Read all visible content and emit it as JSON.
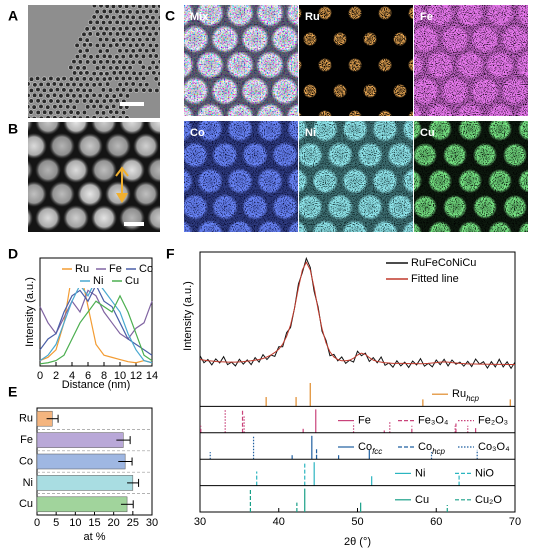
{
  "panel_labels": [
    "A",
    "B",
    "C",
    "D",
    "E",
    "F"
  ],
  "map_labels": [
    "Mix",
    "Ru",
    "Fe",
    "Co",
    "Ni",
    "Cu"
  ],
  "chart_data": [
    {
      "type": "line",
      "x_label": "Distance (nm)",
      "y_label": "Intensity (a.u.)",
      "x": [
        0,
        1,
        2,
        3,
        4,
        5,
        6,
        7,
        8,
        9,
        10,
        11,
        12,
        13,
        14
      ],
      "xlim": [
        0,
        14
      ],
      "xticks": [
        0,
        2,
        4,
        6,
        8,
        10,
        12,
        14
      ],
      "ylim": [
        0,
        10
      ],
      "series": [
        {
          "name": "Ru",
          "color": "#f39c33",
          "values": [
            0.5,
            0.8,
            1.5,
            4,
            8.5,
            9,
            5.5,
            2,
            1,
            0.8,
            0.6,
            0.4,
            0.3,
            0.5,
            0.3
          ]
        },
        {
          "name": "Fe",
          "color": "#8064a2",
          "values": [
            5.5,
            4,
            3,
            4.5,
            6,
            5,
            7,
            6.5,
            5,
            4,
            3,
            2.5,
            3.5,
            4,
            6
          ]
        },
        {
          "name": "Co",
          "color": "#4a5fa8",
          "values": [
            1.5,
            2.5,
            3,
            5,
            6.5,
            7,
            6,
            7.5,
            6,
            5.5,
            4,
            2.5,
            2,
            1.5,
            1
          ]
        },
        {
          "name": "Ni",
          "color": "#49a8d0",
          "values": [
            0.5,
            1,
            2,
            4,
            6,
            7.5,
            6.5,
            8,
            7,
            6,
            5,
            3,
            1.5,
            0.5,
            0.3
          ]
        },
        {
          "name": "Cu",
          "color": "#4caf50",
          "values": [
            0.2,
            0.3,
            0.5,
            1,
            2.5,
            4,
            5,
            6,
            5.5,
            5,
            6.5,
            5,
            3,
            1,
            0.5
          ]
        }
      ]
    },
    {
      "type": "bar",
      "orientation": "horizontal",
      "x_label": "at %",
      "categories": [
        "Ru",
        "Fe",
        "Co",
        "Ni",
        "Cu"
      ],
      "values": [
        4,
        22.5,
        23,
        25,
        23.5
      ],
      "errors": [
        1.5,
        1.8,
        1.8,
        1.5,
        1.6
      ],
      "colors": [
        "#f4b57f",
        "#b9a8d8",
        "#9fb7e2",
        "#a9dde2",
        "#a1d49c"
      ],
      "xlim": [
        0,
        30
      ],
      "xticks": [
        0,
        5,
        10,
        15,
        20,
        25,
        30
      ]
    },
    {
      "type": "line",
      "x_label": "2θ (°)",
      "y_label": "Intensity (a.u.)",
      "xlim": [
        30,
        70
      ],
      "xticks": [
        30,
        40,
        50,
        60,
        70
      ],
      "ylim": [
        0,
        100
      ],
      "x": [
        30,
        30.5,
        31,
        31.5,
        32,
        32.5,
        33,
        33.5,
        34,
        34.5,
        35,
        35.5,
        36,
        36.5,
        37,
        37.5,
        38,
        38.5,
        39,
        39.5,
        40,
        40.5,
        41,
        41.5,
        42,
        42.5,
        43,
        43.5,
        44,
        44.5,
        45,
        45.5,
        46,
        46.5,
        47,
        47.5,
        48,
        48.5,
        49,
        49.5,
        50,
        50.5,
        51,
        51.5,
        52,
        52.5,
        53,
        53.5,
        54,
        54.5,
        55,
        55.5,
        56,
        56.5,
        57,
        57.5,
        58,
        58.5,
        59,
        59.5,
        60,
        60.5,
        61,
        61.5,
        62,
        62.5,
        63,
        63.5,
        64,
        64.5,
        65,
        65.5,
        66,
        66.5,
        67,
        67.5,
        68,
        68.5,
        69,
        69.5,
        70
      ],
      "series": [
        {
          "name": "RuFeCoNiCu",
          "color": "#111111",
          "values": [
            19,
            13.5,
            16,
            11.8,
            16.5,
            13.3,
            18.2,
            12,
            14,
            11,
            16.2,
            12.4,
            15.7,
            12,
            17.5,
            14,
            19.8,
            16,
            19.5,
            18.5,
            26,
            26,
            37,
            41,
            56,
            75,
            84,
            95,
            88,
            69,
            57,
            38,
            31,
            19,
            20,
            15,
            18,
            13,
            15.5,
            14,
            22.5,
            19,
            21,
            14.5,
            17.5,
            13.5,
            18,
            11.5,
            13.3,
            10,
            15,
            11,
            14,
            9.8,
            14.8,
            11.8,
            16.7,
            10.8,
            13,
            10.3,
            15.6,
            12,
            16.2,
            11,
            15.6,
            12.3,
            14,
            10.8,
            14.6,
            10.5,
            16.4,
            12.4,
            14.3,
            9.3,
            14.3,
            10.2,
            16.2,
            10.2,
            14.2,
            9.1,
            14
          ]
        },
        {
          "name": "Fitted line",
          "color": "#c0392b",
          "values": [
            16,
            15.5,
            15,
            14.8,
            14.5,
            14.3,
            14.2,
            14,
            14,
            14,
            14.2,
            14.4,
            14.7,
            15,
            15.5,
            16,
            16.8,
            18,
            19.5,
            21.5,
            24,
            28,
            34,
            43,
            56,
            72,
            86,
            92,
            86,
            72,
            55,
            40,
            29,
            22,
            18,
            16,
            15,
            15,
            15.5,
            17,
            19.5,
            21,
            20,
            17.5,
            15.5,
            14.5,
            14,
            13.5,
            13.3,
            13,
            13,
            13,
            13,
            12.8,
            12.8,
            12.8,
            12.7,
            12.8,
            13,
            13.3,
            13.6,
            14,
            14.2,
            14,
            13.6,
            13.3,
            13,
            12.8,
            12.6,
            12.5,
            12.5,
            12.4,
            12.4,
            12.3,
            12.3,
            12.2,
            12.2,
            12.2,
            12.1,
            12.1,
            12
          ]
        }
      ],
      "references": [
        {
          "series": [
            {
              "name": "Ru",
              "name_sub": "hcp",
              "color": "#e08a2a",
              "dash": "solid",
              "positions": [
                38.4,
                42.2,
                44,
                58.3,
                69.4
              ],
              "intensities": [
                0.4,
                0.4,
                1,
                0.3,
                0.3
              ]
            }
          ]
        },
        {
          "series": [
            {
              "name": "Fe",
              "color": "#c9437a",
              "dash": "solid",
              "positions": [
                44.7,
                65
              ],
              "intensities": [
                1,
                0.2
              ]
            },
            {
              "name": "Fe₃O₄",
              "color": "#c9437a",
              "dash": "dashed",
              "positions": [
                30.1,
                35.4,
                43.1,
                53.4,
                56.9,
                62.5
              ],
              "intensities": [
                0.3,
                1,
                0.2,
                0.1,
                0.3,
                0.4
              ]
            },
            {
              "name": "Fe₂O₃",
              "color": "#c9437a",
              "dash": "dotted",
              "positions": [
                33.2,
                35.6,
                49.5,
                54.1,
                62.4,
                64
              ],
              "intensities": [
                1,
                0.7,
                0.4,
                0.5,
                0.3,
                0.3
              ]
            }
          ]
        },
        {
          "series": [
            {
              "name": "Co",
              "name_sub": "fcc",
              "color": "#1f5fa0",
              "dash": "solid",
              "positions": [
                44.2,
                51.5
              ],
              "intensities": [
                1,
                0.4
              ]
            },
            {
              "name": "Co",
              "name_sub": "hcp",
              "color": "#1f5fa0",
              "dash": "dashed",
              "positions": [
                41.7,
                44.8,
                47.6
              ],
              "intensities": [
                0.2,
                0.5,
                0.2
              ]
            },
            {
              "name": "Co₃O₄",
              "color": "#1f5fa0",
              "dash": "dotted",
              "positions": [
                31.3,
                36.8,
                44.8,
                59.4,
                65.2
              ],
              "intensities": [
                0.3,
                1,
                0.2,
                0.3,
                0.4
              ]
            }
          ]
        },
        {
          "series": [
            {
              "name": "Ni",
              "color": "#2bb5c0",
              "dash": "solid",
              "positions": [
                44.5,
                51.8
              ],
              "intensities": [
                1,
                0.4
              ]
            },
            {
              "name": "NiO",
              "color": "#2bb5c0",
              "dash": "dashed",
              "positions": [
                37.2,
                43.3,
                62.9
              ],
              "intensities": [
                0.6,
                1,
                0.5
              ]
            }
          ]
        },
        {
          "series": [
            {
              "name": "Cu",
              "color": "#19a088",
              "dash": "solid",
              "positions": [
                43.3,
                50.4
              ],
              "intensities": [
                1,
                0.4
              ]
            },
            {
              "name": "Cu₂O",
              "color": "#19a088",
              "dash": "dashed",
              "positions": [
                36.4,
                42.3,
                61.4
              ],
              "intensities": [
                1,
                0.4,
                0.3
              ]
            }
          ]
        }
      ]
    }
  ]
}
